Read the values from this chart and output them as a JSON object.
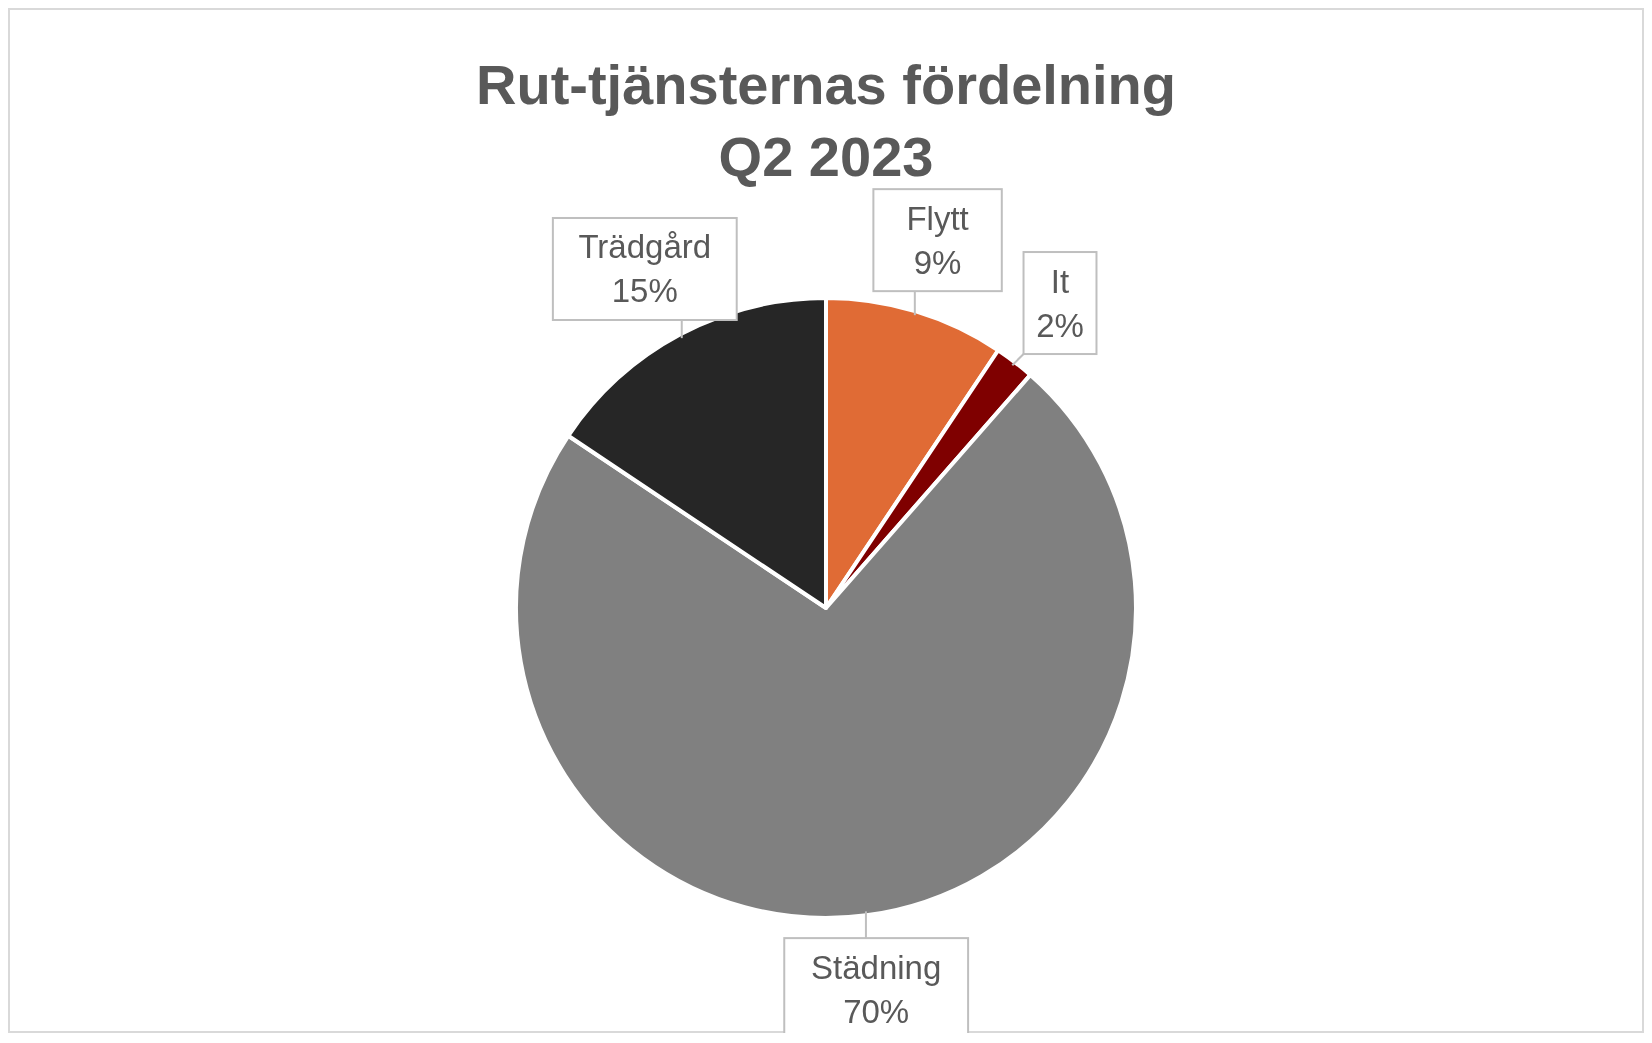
{
  "chart_data": {
    "type": "pie",
    "title": "Rut-tjänsternas fördelning\nQ2 2023",
    "categories": [
      "Flytt",
      "It",
      "Städning",
      "Trädgård"
    ],
    "values": [
      9,
      2,
      70,
      15
    ],
    "colors": [
      "#e06b35",
      "#7f0000",
      "#808080",
      "#262626"
    ],
    "value_labels": [
      "9%",
      "2%",
      "70%",
      "15%"
    ]
  }
}
